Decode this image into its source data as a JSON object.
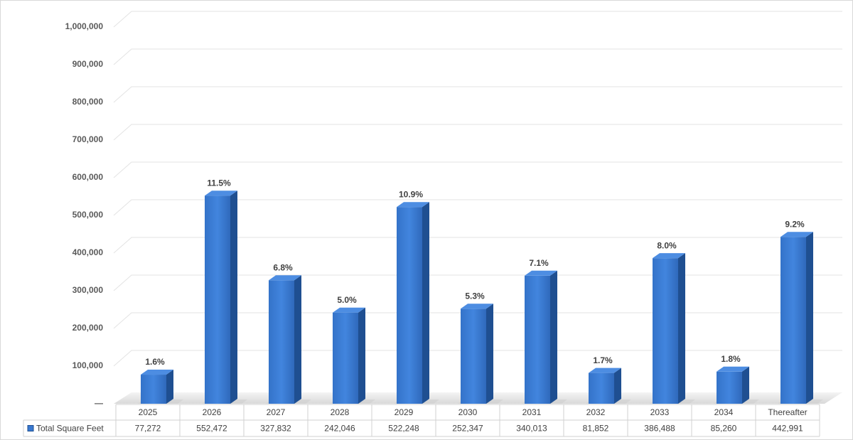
{
  "chart_data": {
    "type": "bar3d",
    "categories": [
      "2025",
      "2026",
      "2027",
      "2028",
      "2029",
      "2030",
      "2031",
      "2032",
      "2033",
      "2034",
      "Thereafter"
    ],
    "series": [
      {
        "name": "Total Square Feet",
        "color": "#3878d0",
        "values": [
          77272,
          552472,
          327832,
          242046,
          522248,
          252347,
          340013,
          81852,
          386488,
          85260,
          442991
        ],
        "value_labels": [
          "77,272",
          "552,472",
          "327,832",
          "242,046",
          "522,248",
          "252,347",
          "340,013",
          "81,852",
          "386,488",
          "85,260",
          "442,991"
        ],
        "data_labels": [
          "1.6%",
          "11.5%",
          "6.8%",
          "5.0%",
          "10.9%",
          "5.3%",
          "7.1%",
          "1.7%",
          "8.0%",
          "1.8%",
          "9.2%"
        ]
      }
    ],
    "ylim": [
      0,
      1000000
    ],
    "yticks": [
      {
        "value": 0,
        "label": "—"
      },
      {
        "value": 100000,
        "label": "100,000"
      },
      {
        "value": 200000,
        "label": "200,000"
      },
      {
        "value": 300000,
        "label": "300,000"
      },
      {
        "value": 400000,
        "label": "400,000"
      },
      {
        "value": 500000,
        "label": "500,000"
      },
      {
        "value": 600000,
        "label": "600,000"
      },
      {
        "value": 700000,
        "label": "700,000"
      },
      {
        "value": 800000,
        "label": "800,000"
      },
      {
        "value": 900000,
        "label": "900,000"
      },
      {
        "value": 1000000,
        "label": "1,000,000"
      }
    ],
    "grid": true,
    "data_table": true
  }
}
